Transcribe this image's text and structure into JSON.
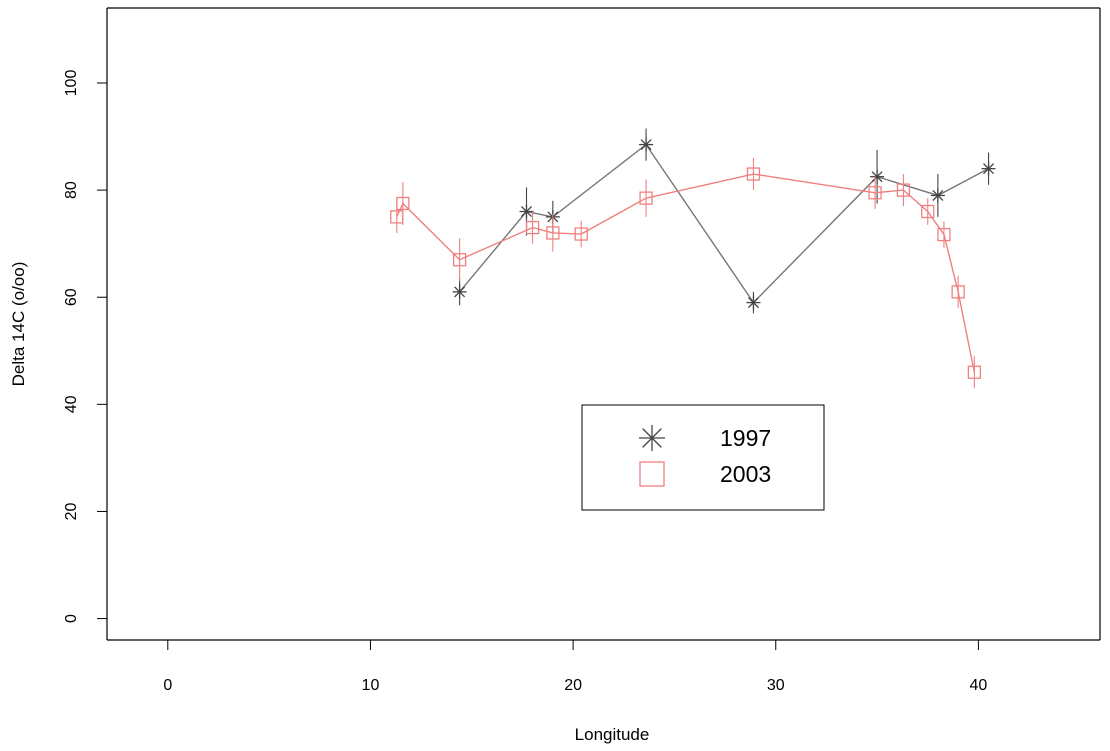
{
  "chart_data": {
    "type": "scatter",
    "xlabel": "Longitude",
    "ylabel": "Delta 14C (o/oo)",
    "xlim": [
      -3,
      46
    ],
    "ylim": [
      -4,
      114
    ],
    "x_ticks": [
      0,
      10,
      20,
      30,
      40
    ],
    "y_ticks": [
      0,
      20,
      40,
      60,
      80,
      100
    ],
    "grid": false,
    "legend_position": "center",
    "series": [
      {
        "name": "1997",
        "marker": "asterisk",
        "color": "#444444",
        "line_color": "#777777",
        "points": [
          {
            "x": 14.4,
            "y": 61,
            "err": 2.5
          },
          {
            "x": 17.7,
            "y": 76,
            "err": 4.5
          },
          {
            "x": 19.0,
            "y": 75,
            "err": 3
          },
          {
            "x": 23.6,
            "y": 88.5,
            "err": 3
          },
          {
            "x": 28.9,
            "y": 59,
            "err": 2
          },
          {
            "x": 35.0,
            "y": 82.5,
            "err": 5
          },
          {
            "x": 38.0,
            "y": 79,
            "err": 4
          },
          {
            "x": 40.5,
            "y": 84,
            "err": 3
          }
        ]
      },
      {
        "name": "2003",
        "marker": "square",
        "color": "#f08080",
        "line_color": "#f08080",
        "points": [
          {
            "x": 11.3,
            "y": 75,
            "err": 3
          },
          {
            "x": 11.6,
            "y": 77.5,
            "err": 4
          },
          {
            "x": 14.4,
            "y": 67,
            "err": 4
          },
          {
            "x": 18.0,
            "y": 73,
            "err": 3
          },
          {
            "x": 19.0,
            "y": 72,
            "err": 3.5
          },
          {
            "x": 20.4,
            "y": 71.8,
            "err": 2.5
          },
          {
            "x": 23.6,
            "y": 78.5,
            "err": 3.5
          },
          {
            "x": 28.9,
            "y": 83,
            "err": 3
          },
          {
            "x": 34.9,
            "y": 79.5,
            "err": 3
          },
          {
            "x": 36.3,
            "y": 80,
            "err": 3
          },
          {
            "x": 37.5,
            "y": 76,
            "err": 2.5
          },
          {
            "x": 38.3,
            "y": 71.7,
            "err": 2.5
          },
          {
            "x": 39.0,
            "y": 61,
            "err": 3
          },
          {
            "x": 39.8,
            "y": 46,
            "err": 3
          }
        ]
      }
    ]
  }
}
